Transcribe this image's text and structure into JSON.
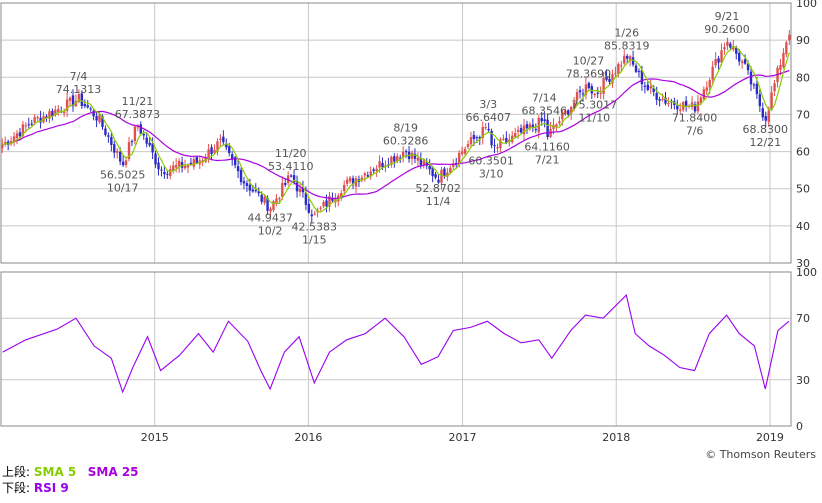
{
  "chart_data": [
    {
      "panel": "price",
      "type": "candlestick",
      "x_range": [
        "2014-01",
        "2019-02"
      ],
      "ylim": [
        30,
        100
      ],
      "y_ticks": [
        "30",
        "40",
        "50",
        "60",
        "70",
        "80",
        "90",
        "100"
      ],
      "grid": true,
      "anchors": [
        {
          "date": "2014-01-01",
          "v": 61.5
        },
        {
          "date": "2014-03-15",
          "v": 68.0
        },
        {
          "date": "2014-07-04",
          "v": 74.1313
        },
        {
          "date": "2014-08-20",
          "v": 69.0
        },
        {
          "date": "2014-10-17",
          "v": 56.5025
        },
        {
          "date": "2014-11-21",
          "v": 67.3873
        },
        {
          "date": "2015-01-15",
          "v": 55.0
        },
        {
          "date": "2015-04-10",
          "v": 57.0
        },
        {
          "date": "2015-06-05",
          "v": 62.5
        },
        {
          "date": "2015-08-01",
          "v": 52.0
        },
        {
          "date": "2015-10-02",
          "v": 44.9437
        },
        {
          "date": "2015-11-20",
          "v": 53.411
        },
        {
          "date": "2016-01-15",
          "v": 42.5383
        },
        {
          "date": "2016-03-20",
          "v": 50.5
        },
        {
          "date": "2016-06-10",
          "v": 56.0
        },
        {
          "date": "2016-08-19",
          "v": 60.3286
        },
        {
          "date": "2016-11-04",
          "v": 52.8702
        },
        {
          "date": "2017-01-10",
          "v": 61.5
        },
        {
          "date": "2017-03-03",
          "v": 66.6407
        },
        {
          "date": "2017-03-10",
          "v": 60.3501
        },
        {
          "date": "2017-05-20",
          "v": 65.0
        },
        {
          "date": "2017-07-14",
          "v": 68.3546
        },
        {
          "date": "2017-07-21",
          "v": 64.116
        },
        {
          "date": "2017-10-27",
          "v": 78.369
        },
        {
          "date": "2017-11-10",
          "v": 75.3017
        },
        {
          "date": "2018-01-26",
          "v": 85.8319
        },
        {
          "date": "2018-03-15",
          "v": 77.0
        },
        {
          "date": "2018-05-01",
          "v": 73.5
        },
        {
          "date": "2018-07-06",
          "v": 71.84
        },
        {
          "date": "2018-09-21",
          "v": 90.26
        },
        {
          "date": "2018-11-01",
          "v": 83.0
        },
        {
          "date": "2018-12-21",
          "v": 68.83
        },
        {
          "date": "2019-02-15",
          "v": 92.5
        }
      ],
      "series": [
        {
          "name": "SMA 5",
          "color": "#88cc00"
        },
        {
          "name": "SMA 25",
          "color": "#aa00dd"
        }
      ],
      "annotations": [
        {
          "date": "2014-07-04",
          "value": "74.1313",
          "label": "7/4",
          "pos": "above"
        },
        {
          "date": "2014-11-21",
          "value": "67.3873",
          "label": "11/21",
          "pos": "above"
        },
        {
          "date": "2014-10-17",
          "value": "56.5025",
          "label": "10/17",
          "pos": "below"
        },
        {
          "date": "2015-11-20",
          "value": "53.4110",
          "label": "11/20",
          "pos": "above"
        },
        {
          "date": "2015-10-02",
          "value": "44.9437",
          "label": "10/2",
          "pos": "below"
        },
        {
          "date": "2016-01-15",
          "value": "42.5383",
          "label": "1/15",
          "pos": "below"
        },
        {
          "date": "2016-08-19",
          "value": "60.3286",
          "label": "8/19",
          "pos": "above"
        },
        {
          "date": "2016-11-04",
          "value": "52.8702",
          "label": "11/4",
          "pos": "below"
        },
        {
          "date": "2017-03-03",
          "value": "66.6407",
          "label": "3/3",
          "pos": "above"
        },
        {
          "date": "2017-03-10",
          "value": "60.3501",
          "label": "3/10",
          "pos": "below"
        },
        {
          "date": "2017-07-14",
          "value": "68.3546",
          "label": "7/14",
          "pos": "above"
        },
        {
          "date": "2017-07-21",
          "value": "64.1160",
          "label": "7/21",
          "pos": "below"
        },
        {
          "date": "2017-10-27",
          "value": "78.3690",
          "label": "10/27",
          "pos": "above"
        },
        {
          "date": "2017-11-10",
          "value": "75.3017",
          "label": "11/10",
          "pos": "below"
        },
        {
          "date": "2018-01-26",
          "value": "85.8319",
          "label": "1/26",
          "pos": "above"
        },
        {
          "date": "2018-07-06",
          "value": "71.8400",
          "label": "7/6",
          "pos": "below"
        },
        {
          "date": "2018-09-21",
          "value": "90.2600",
          "label": "9/21",
          "pos": "above"
        },
        {
          "date": "2018-12-21",
          "value": "68.8300",
          "label": "12/21",
          "pos": "below"
        }
      ]
    },
    {
      "panel": "rsi",
      "type": "line",
      "ylim": [
        0,
        100
      ],
      "y_ticks": [
        "0",
        "30",
        "70",
        "100"
      ],
      "grid": true,
      "series": [
        {
          "name": "RSI 9",
          "color": "#9900ee"
        }
      ],
      "x_ticks": [
        "2015",
        "2016",
        "2017",
        "2018",
        "2019"
      ],
      "x": [
        "2014-01-05",
        "2014-03-01",
        "2014-05-15",
        "2014-06-28",
        "2014-08-10",
        "2014-09-20",
        "2014-10-17",
        "2014-11-10",
        "2014-12-15",
        "2015-01-15",
        "2015-03-01",
        "2015-04-15",
        "2015-05-20",
        "2015-06-25",
        "2015-08-10",
        "2015-09-10",
        "2015-10-02",
        "2015-11-05",
        "2015-12-10",
        "2016-01-15",
        "2016-02-20",
        "2016-04-01",
        "2016-05-15",
        "2016-07-01",
        "2016-08-15",
        "2016-09-25",
        "2016-11-04",
        "2016-12-10",
        "2017-01-20",
        "2017-03-01",
        "2017-04-10",
        "2017-05-20",
        "2017-07-01",
        "2017-08-01",
        "2017-09-15",
        "2017-10-20",
        "2017-12-01",
        "2018-01-25",
        "2018-02-15",
        "2018-03-20",
        "2018-04-25",
        "2018-06-01",
        "2018-07-06",
        "2018-08-10",
        "2018-09-20",
        "2018-10-20",
        "2018-11-25",
        "2018-12-21",
        "2019-01-20",
        "2019-02-15"
      ],
      "values": [
        48,
        56,
        63,
        70,
        52,
        44,
        22,
        38,
        58,
        36,
        46,
        60,
        48,
        68,
        55,
        36,
        24,
        48,
        58,
        28,
        48,
        56,
        60,
        70,
        58,
        40,
        45,
        62,
        64,
        68,
        60,
        54,
        56,
        44,
        62,
        72,
        70,
        85,
        60,
        52,
        46,
        38,
        36,
        60,
        72,
        60,
        52,
        24,
        62,
        68
      ]
    }
  ],
  "axes": {
    "price_ticks": [
      "30",
      "40",
      "50",
      "60",
      "70",
      "80",
      "90",
      "100"
    ],
    "rsi_ticks": [
      "0",
      "30",
      "70",
      "100"
    ],
    "x_ticks": [
      "2015",
      "2016",
      "2017",
      "2018",
      "2019"
    ]
  },
  "legend": {
    "upper_label": "上段:",
    "sma5_label": "SMA 5",
    "sma25_label": "SMA 25",
    "lower_label": "下段:",
    "rsi_label": "RSI 9"
  },
  "copyright": "© Thomson Reuters",
  "colors": {
    "up_candle": "#e05050",
    "down_candle": "#2a2ac8",
    "sma5": "#88cc00",
    "sma25": "#aa00dd",
    "rsi": "#9900ee",
    "grid": "#c8c8c8",
    "frame": "#888888"
  }
}
